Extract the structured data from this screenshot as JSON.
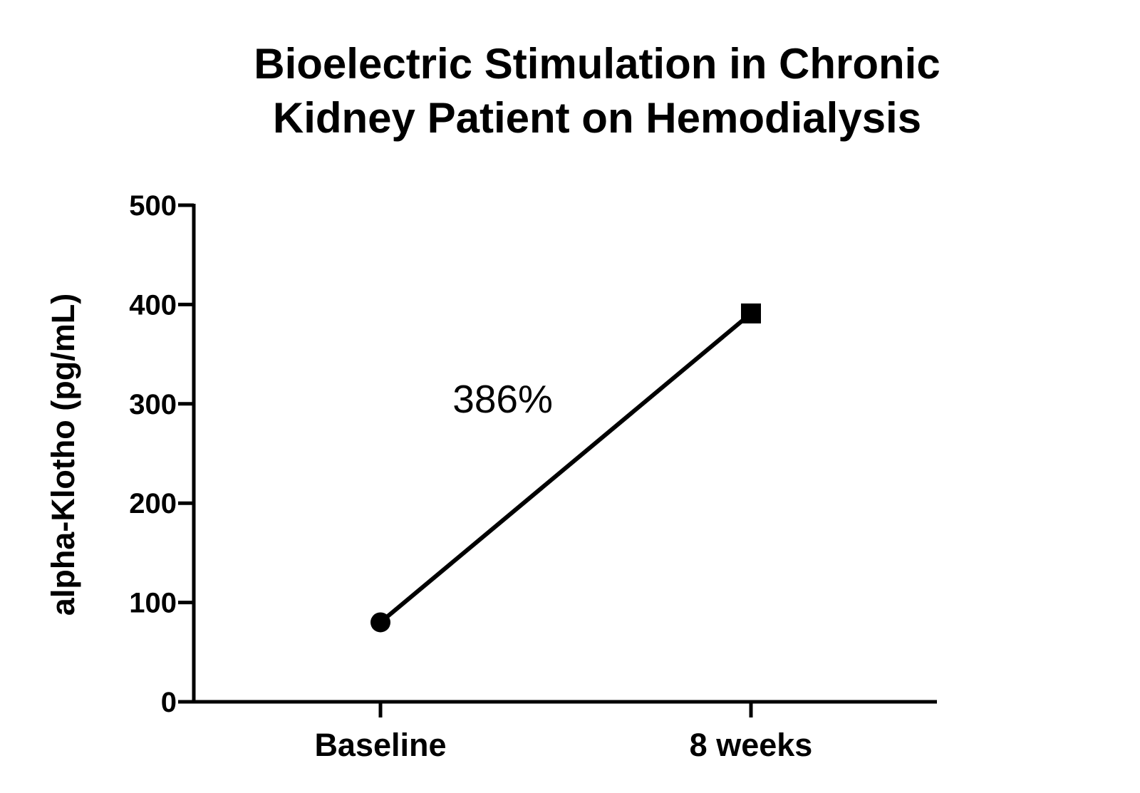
{
  "chart_data": {
    "type": "line",
    "title_lines": [
      "Bioelectric Stimulation in Chronic",
      "Kidney Patient on Hemodialysis"
    ],
    "xlabel": "",
    "ylabel": "alpha-Klotho (pg/mL)",
    "categories": [
      "Baseline",
      "8 weeks"
    ],
    "series": [
      {
        "values": [
          80,
          391
        ],
        "markers": [
          "circle",
          "square"
        ]
      }
    ],
    "ylim": [
      0,
      500
    ],
    "yticks": [
      0,
      100,
      200,
      300,
      400,
      500
    ],
    "annotations": [
      {
        "text": "386%",
        "x_between": [
          0,
          1
        ],
        "y": 300
      }
    ],
    "grid": false,
    "colors": {
      "line": "#000000",
      "axis": "#000000",
      "text": "#000000"
    }
  }
}
